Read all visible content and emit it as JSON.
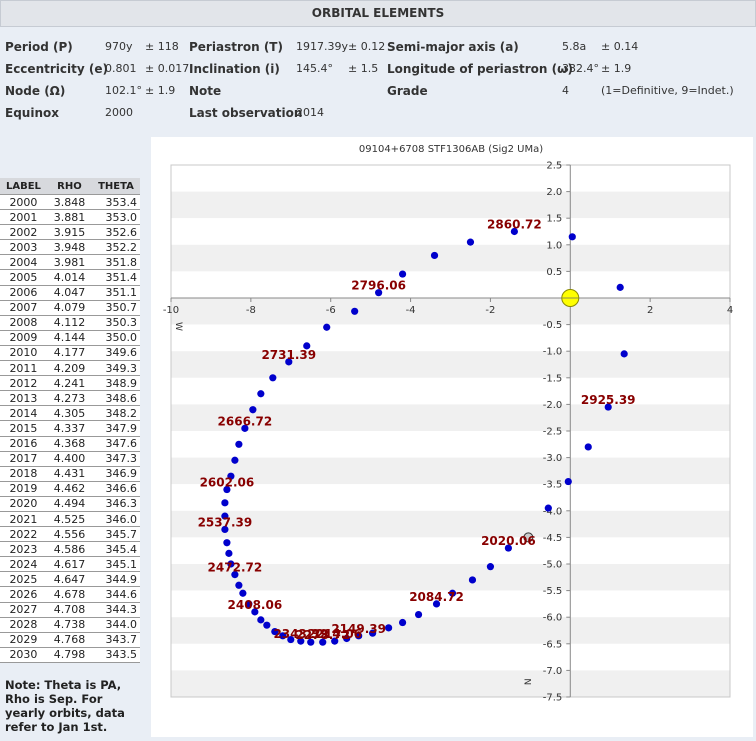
{
  "header": {
    "title": "ORBITAL ELEMENTS"
  },
  "elements": {
    "period": {
      "label": "Period (P)",
      "value": "970y",
      "err": "± 118"
    },
    "periastron": {
      "label": "Periastron (T)",
      "value": "1917.39y",
      "err": "± 0.12"
    },
    "semimajor": {
      "label": "Semi-major axis (a)",
      "value": "5.8a",
      "err": "± 0.14"
    },
    "eccentricity": {
      "label": "Eccentricity (e)",
      "value": "0.801",
      "err": "± 0.017"
    },
    "inclination": {
      "label": "Inclination (i)",
      "value": "145.4°",
      "err": "± 1.5"
    },
    "longitude": {
      "label": "Longitude of periastron (ω)",
      "value": "332.4°",
      "err": "± 1.9"
    },
    "node": {
      "label": "Node (Ω)",
      "value": "102.1°",
      "err": "± 1.9"
    },
    "note": {
      "label": "Note"
    },
    "grade": {
      "label": "Grade",
      "value": "4",
      "desc": "(1=Definitive, 9=Indet.)"
    },
    "equinox": {
      "label": "Equinox",
      "value": "2000"
    },
    "lastobs": {
      "label": "Last observation",
      "value": "2014"
    }
  },
  "table": {
    "headers": [
      "LABEL",
      "RHO",
      "THETA"
    ],
    "rows": [
      [
        "2000",
        "3.848",
        "353.4"
      ],
      [
        "2001",
        "3.881",
        "353.0"
      ],
      [
        "2002",
        "3.915",
        "352.6"
      ],
      [
        "2003",
        "3.948",
        "352.2"
      ],
      [
        "2004",
        "3.981",
        "351.8"
      ],
      [
        "2005",
        "4.014",
        "351.4"
      ],
      [
        "2006",
        "4.047",
        "351.1"
      ],
      [
        "2007",
        "4.079",
        "350.7"
      ],
      [
        "2008",
        "4.112",
        "350.3"
      ],
      [
        "2009",
        "4.144",
        "350.0"
      ],
      [
        "2010",
        "4.177",
        "349.6"
      ],
      [
        "2011",
        "4.209",
        "349.3"
      ],
      [
        "2012",
        "4.241",
        "348.9"
      ],
      [
        "2013",
        "4.273",
        "348.6"
      ],
      [
        "2014",
        "4.305",
        "348.2"
      ],
      [
        "2015",
        "4.337",
        "347.9"
      ],
      [
        "2016",
        "4.368",
        "347.6"
      ],
      [
        "2017",
        "4.400",
        "347.3"
      ],
      [
        "2018",
        "4.431",
        "346.9"
      ],
      [
        "2019",
        "4.462",
        "346.6"
      ],
      [
        "2020",
        "4.494",
        "346.3"
      ],
      [
        "2021",
        "4.525",
        "346.0"
      ],
      [
        "2022",
        "4.556",
        "345.7"
      ],
      [
        "2023",
        "4.586",
        "345.4"
      ],
      [
        "2024",
        "4.617",
        "345.1"
      ],
      [
        "2025",
        "4.647",
        "344.9"
      ],
      [
        "2026",
        "4.678",
        "344.6"
      ],
      [
        "2027",
        "4.708",
        "344.3"
      ],
      [
        "2028",
        "4.738",
        "344.0"
      ],
      [
        "2029",
        "4.768",
        "343.7"
      ],
      [
        "2030",
        "4.798",
        "343.5"
      ]
    ]
  },
  "note": "Note: Theta is PA, Rho is Sep. For yearly orbits, data refer to Jan 1st.",
  "chart_data": {
    "type": "scatter",
    "title": "09104+6708 STF1306AB (Sig2 UMa)",
    "xlim": [
      -10,
      4
    ],
    "ylim": [
      -7.5,
      2.5
    ],
    "x_ticks": [
      -10,
      -8,
      -6,
      -4,
      -2,
      2,
      4
    ],
    "y_ticks": [
      2.5,
      2.0,
      1.5,
      1.0,
      0.5,
      -0.5,
      -1.0,
      -1.5,
      -2.0,
      -2.5,
      -3.0,
      -3.5,
      -4.0,
      -4.5,
      -5.0,
      -5.5,
      -6.0,
      -6.5,
      -7.0,
      -7.5
    ],
    "axis_letters": {
      "west": "W",
      "north": "N"
    },
    "colors": {
      "orbit": "#0000cc",
      "label": "#880000",
      "primary": "#ffff00",
      "observation": "#cccccc"
    },
    "primary": [
      0,
      0
    ],
    "last_observation": [
      -1.05,
      -4.5
    ],
    "orbit_points": [
      [
        0.05,
        1.15
      ],
      [
        1.25,
        0.2
      ],
      [
        1.35,
        -1.05
      ],
      [
        0.95,
        -2.05
      ],
      [
        0.45,
        -2.8
      ],
      [
        -0.05,
        -3.45
      ],
      [
        -0.55,
        -3.95
      ],
      [
        -1.55,
        -4.7
      ],
      [
        -2.0,
        -5.05
      ],
      [
        -2.45,
        -5.3
      ],
      [
        -2.95,
        -5.55
      ],
      [
        -3.35,
        -5.75
      ],
      [
        -3.8,
        -5.95
      ],
      [
        -4.2,
        -6.1
      ],
      [
        -4.55,
        -6.2
      ],
      [
        -4.95,
        -6.3
      ],
      [
        -5.3,
        -6.35
      ],
      [
        -5.6,
        -6.4
      ],
      [
        -5.9,
        -6.45
      ],
      [
        -6.2,
        -6.47
      ],
      [
        -6.5,
        -6.47
      ],
      [
        -6.75,
        -6.45
      ],
      [
        -7.0,
        -6.42
      ],
      [
        -7.2,
        -6.35
      ],
      [
        -7.4,
        -6.27
      ],
      [
        -7.6,
        -6.15
      ],
      [
        -7.75,
        -6.05
      ],
      [
        -7.9,
        -5.9
      ],
      [
        -8.05,
        -5.75
      ],
      [
        -8.2,
        -5.55
      ],
      [
        -8.3,
        -5.4
      ],
      [
        -8.4,
        -5.2
      ],
      [
        -8.5,
        -5.0
      ],
      [
        -8.55,
        -4.8
      ],
      [
        -8.6,
        -4.6
      ],
      [
        -8.65,
        -4.35
      ],
      [
        -8.65,
        -4.1
      ],
      [
        -8.65,
        -3.85
      ],
      [
        -8.6,
        -3.6
      ],
      [
        -8.5,
        -3.35
      ],
      [
        -8.4,
        -3.05
      ],
      [
        -8.3,
        -2.75
      ],
      [
        -8.15,
        -2.45
      ],
      [
        -7.95,
        -2.1
      ],
      [
        -7.75,
        -1.8
      ],
      [
        -7.45,
        -1.5
      ],
      [
        -7.05,
        -1.2
      ],
      [
        -6.6,
        -0.9
      ],
      [
        -6.1,
        -0.55
      ],
      [
        -5.4,
        -0.25
      ],
      [
        -4.8,
        0.1
      ],
      [
        -4.2,
        0.45
      ],
      [
        -3.4,
        0.8
      ],
      [
        -2.5,
        1.05
      ],
      [
        -1.4,
        1.25
      ]
    ],
    "year_labels": [
      {
        "text": "2860.72",
        "x": -1.4,
        "y": 1.25
      },
      {
        "text": "2796.06",
        "x": -4.8,
        "y": 0.1
      },
      {
        "text": "2731.39",
        "x": -7.05,
        "y": -1.2
      },
      {
        "text": "2925.39",
        "x": 0.95,
        "y": -2.05
      },
      {
        "text": "2666.72",
        "x": -8.15,
        "y": -2.45
      },
      {
        "text": "2602.06",
        "x": -8.6,
        "y": -3.6
      },
      {
        "text": "2537.39",
        "x": -8.65,
        "y": -4.35
      },
      {
        "text": "2020.06",
        "x": -1.55,
        "y": -4.7
      },
      {
        "text": "2472.72",
        "x": -8.4,
        "y": -5.2
      },
      {
        "text": "2084.72",
        "x": -3.35,
        "y": -5.75
      },
      {
        "text": "2408.06",
        "x": -7.9,
        "y": -5.9
      },
      {
        "text": "2149.39",
        "x": -5.3,
        "y": -6.35
      },
      {
        "text": "2343.39",
        "x": -6.75,
        "y": -6.45
      },
      {
        "text": "2278.72",
        "x": -6.2,
        "y": -6.47
      },
      {
        "text": "2214.06",
        "x": -5.9,
        "y": -6.45
      }
    ]
  }
}
